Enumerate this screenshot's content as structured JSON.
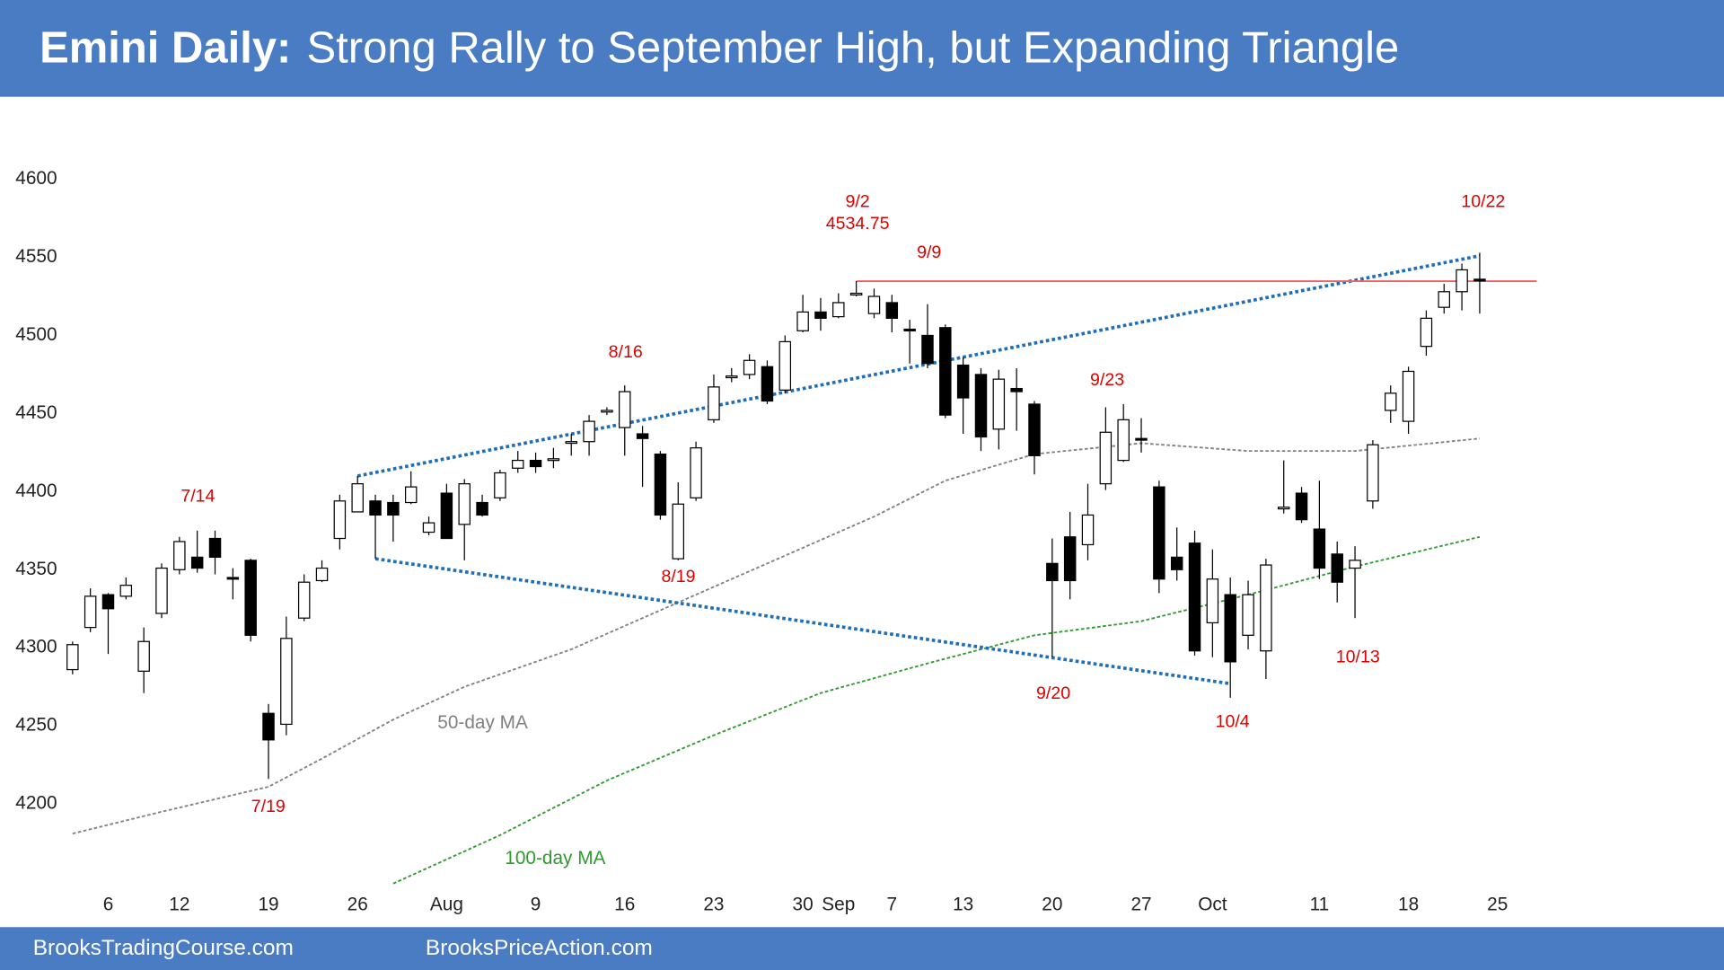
{
  "chart_data": {
    "type": "candlestick",
    "title_bold": "Emini Daily:",
    "title": "Strong Rally to September High, but Expanding Triangle",
    "footer_left": "BrooksTradingCourse.com",
    "footer_right": "BrooksPriceAction.com",
    "ylim": [
      4150,
      4620
    ],
    "yticks": [
      4200,
      4250,
      4300,
      4350,
      4400,
      4450,
      4500,
      4550,
      4600
    ],
    "xlim": [
      -3,
      83
    ],
    "xticks": [
      {
        "value": 2,
        "label": "6"
      },
      {
        "value": 6,
        "label": "12"
      },
      {
        "value": 11,
        "label": "19"
      },
      {
        "value": 16,
        "label": "26"
      },
      {
        "value": 21,
        "label": "Aug"
      },
      {
        "value": 26,
        "label": "9"
      },
      {
        "value": 31,
        "label": "16"
      },
      {
        "value": 36,
        "label": "23"
      },
      {
        "value": 41,
        "label": "30"
      },
      {
        "value": 43,
        "label": "Sep"
      },
      {
        "value": 46,
        "label": "7"
      },
      {
        "value": 50,
        "label": "13"
      },
      {
        "value": 55,
        "label": "20"
      },
      {
        "value": 60,
        "label": "27"
      },
      {
        "value": 64,
        "label": "Oct"
      },
      {
        "value": 70,
        "label": "11"
      },
      {
        "value": 75,
        "label": "18"
      },
      {
        "value": 80,
        "label": "25"
      }
    ],
    "grid": false,
    "up_color": "#ffffff",
    "down_color": "#000000",
    "candles": {
      "open": [
        4286,
        4313,
        4334,
        4333,
        4285,
        4322,
        4350,
        4358,
        4370,
        4345,
        4356,
        4258,
        4251,
        4319,
        4343,
        4370,
        4387,
        4394,
        4393,
        4393,
        4374,
        4399,
        4379,
        4393,
        4396,
        4415,
        4420,
        4420,
        4431,
        4432,
        4451,
        4441,
        4437,
        4424,
        4357,
        4396,
        4446,
        4473,
        4475,
        4480,
        4465,
        4503,
        4515,
        4512,
        4526,
        4514,
        4521,
        4504,
        4500,
        4505,
        4481,
        4475,
        4440,
        4466,
        4456,
        4354,
        4371,
        4366,
        4405,
        4420,
        4434,
        4403,
        4358,
        4367,
        4316,
        4334,
        4308,
        4298,
        4389,
        4399,
        4376,
        4360,
        4351,
        4394,
        4452,
        4445,
        4493,
        4518,
        4528,
        4536
      ],
      "high": [
        4304,
        4338,
        4335,
        4345,
        4313,
        4354,
        4371,
        4375,
        4375,
        4351,
        4357,
        4264,
        4320,
        4347,
        4356,
        4398,
        4410,
        4398,
        4398,
        4413,
        4384,
        4405,
        4408,
        4398,
        4414,
        4426,
        4425,
        4428,
        4437,
        4449,
        4454,
        4468,
        4442,
        4426,
        4406,
        4432,
        4475,
        4479,
        4488,
        4484,
        4500,
        4526,
        4524,
        4527,
        4534.75,
        4530,
        4526,
        4510,
        4520,
        4507,
        4486,
        4479,
        4478,
        4479,
        4458,
        4370,
        4387,
        4405,
        4454,
        4456,
        4447,
        4407,
        4377,
        4375,
        4363,
        4345,
        4343,
        4357,
        4420,
        4403,
        4407,
        4368,
        4365,
        4433,
        4468,
        4480,
        4516,
        4533,
        4546,
        4553
      ],
      "low": [
        4283,
        4310,
        4296,
        4331,
        4271,
        4319,
        4347,
        4348,
        4347,
        4331,
        4304,
        4216,
        4244,
        4317,
        4342,
        4363,
        4387,
        4357,
        4368,
        4392,
        4372,
        4370,
        4356,
        4384,
        4394,
        4412,
        4412,
        4415,
        4423,
        4423,
        4449,
        4423,
        4403,
        4382,
        4356,
        4394,
        4444,
        4470,
        4472,
        4456,
        4463,
        4502,
        4503,
        4511,
        4525,
        4511,
        4502,
        4482,
        4479,
        4447,
        4437,
        4426,
        4427,
        4439,
        4411,
        4294,
        4331,
        4356,
        4401,
        4419,
        4425,
        4335,
        4343,
        4295,
        4294,
        4268,
        4299,
        4280,
        4386,
        4380,
        4344,
        4329,
        4319,
        4389,
        4444,
        4437,
        4487,
        4514,
        4516,
        4514
      ],
      "close": [
        4302,
        4333,
        4325,
        4340,
        4304,
        4351,
        4368,
        4351,
        4358,
        4344,
        4308,
        4241,
        4306,
        4342,
        4351,
        4394,
        4405,
        4385,
        4385,
        4403,
        4380,
        4370,
        4405,
        4385,
        4412,
        4420,
        4416,
        4421,
        4432,
        4445,
        4452,
        4464,
        4434,
        4385,
        4392,
        4428,
        4467,
        4474,
        4484,
        4458,
        4496,
        4515,
        4511,
        4521,
        4527,
        4525,
        4511,
        4503,
        4482,
        4449,
        4460,
        4435,
        4472,
        4464,
        4423,
        4343,
        4343,
        4385,
        4438,
        4446,
        4433,
        4344,
        4350,
        4298,
        4344,
        4291,
        4334,
        4353,
        4390,
        4382,
        4351,
        4342,
        4356,
        4430,
        4463,
        4477,
        4511,
        4528,
        4542,
        4535
      ]
    },
    "series": [
      {
        "name": "50-day MA",
        "color": "#808080",
        "x": [
          0,
          5,
          11,
          14,
          18,
          22,
          28,
          34,
          40,
          45,
          49,
          54,
          60,
          66,
          72,
          79
        ],
        "values": [
          4181,
          4195,
          4211,
          4229,
          4254,
          4275,
          4299,
          4329,
          4359,
          4384,
          4407,
          4424,
          4431,
          4426,
          4426,
          4434
        ]
      },
      {
        "name": "100-day MA",
        "color": "#2e9a2e",
        "x": [
          18,
          24,
          30,
          36,
          42,
          48,
          54,
          60,
          66,
          72,
          79
        ],
        "values": [
          4149,
          4180,
          4215,
          4244,
          4271,
          4290,
          4308,
          4317,
          4334,
          4352,
          4371
        ]
      }
    ],
    "lines": [
      {
        "color": "#1f6fb8",
        "x": [
          16,
          79
        ],
        "values": [
          4410,
          4551
        ]
      },
      {
        "color": "#1f6fb8",
        "x": [
          17,
          65
        ],
        "values": [
          4357,
          4277
        ]
      },
      {
        "color": "#f06060",
        "x": [
          44,
          82.2
        ],
        "values": [
          4534.75,
          4534.75
        ]
      }
    ],
    "annotations": [
      {
        "text": "7/14",
        "color": "#e00000"
      },
      {
        "text": "7/19",
        "color": "#e00000"
      },
      {
        "text": "8/16",
        "color": "#e00000"
      },
      {
        "text": "8/19",
        "color": "#e00000"
      },
      {
        "text": "9/2",
        "color": "#e00000"
      },
      {
        "text": "4534.75",
        "color": "#e00000"
      },
      {
        "text": "9/9",
        "color": "#e00000"
      },
      {
        "text": "9/23",
        "color": "#e00000"
      },
      {
        "text": "9/20",
        "color": "#e00000"
      },
      {
        "text": "10/4",
        "color": "#e00000"
      },
      {
        "text": "10/13",
        "color": "#e00000"
      },
      {
        "text": "10/22",
        "color": "#e00000"
      },
      {
        "text": "50-day MA",
        "color": "#808080"
      },
      {
        "text": "100-day MA",
        "color": "#2e9a2e"
      }
    ]
  }
}
